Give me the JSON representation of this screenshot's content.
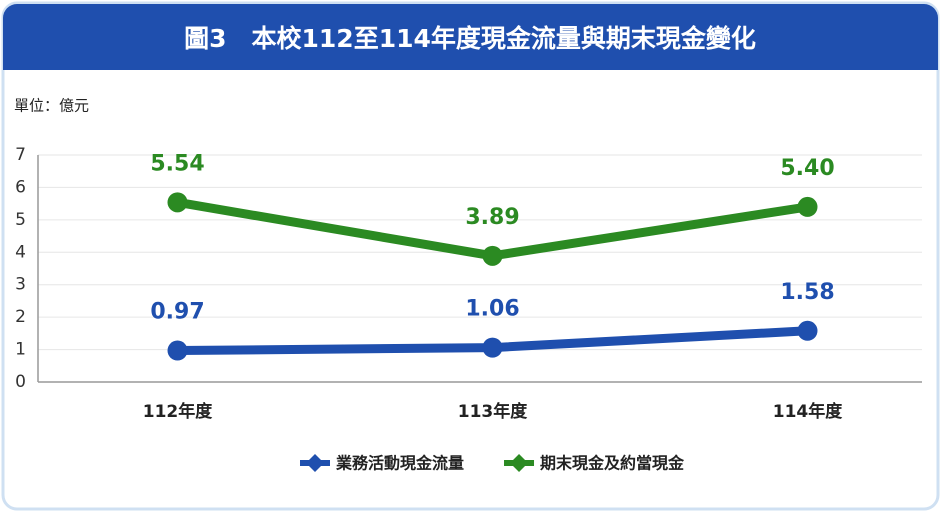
{
  "chart_data": {
    "type": "line",
    "title": "圖3　本校112至114年度現金流量與期末現金變化",
    "unit": "單位：億元",
    "categories": [
      "112年度",
      "113年度",
      "114年度"
    ],
    "series": [
      {
        "name": "業務活動現金流量",
        "color": "#1f4fae",
        "values": [
          0.97,
          1.06,
          1.58
        ],
        "value_labels": [
          "0.97",
          "1.06",
          "1.58"
        ]
      },
      {
        "name": "期末現金及約當現金",
        "color": "#2b8a22",
        "values": [
          5.54,
          3.89,
          5.4
        ],
        "value_labels": [
          "5.54",
          "3.89",
          "5.40"
        ]
      }
    ],
    "ylim": [
      0,
      7
    ],
    "yticks": [
      0,
      1,
      2,
      3,
      4,
      5,
      6,
      7
    ],
    "grid": true,
    "legend": "bottom"
  }
}
